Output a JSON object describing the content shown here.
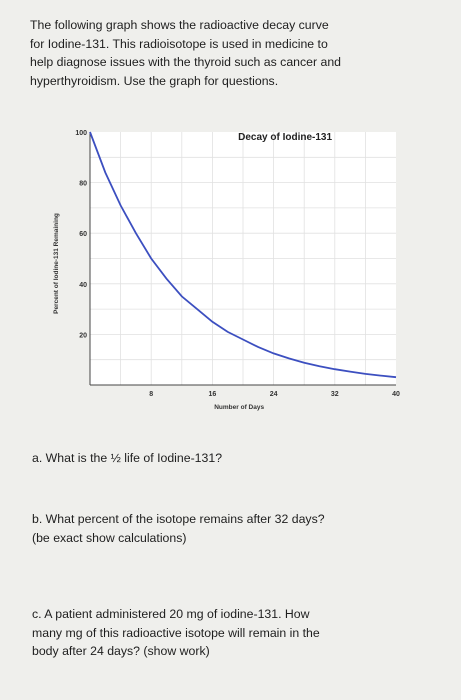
{
  "intro": {
    "lines": [
      "The following graph shows the radioactive decay curve",
      "for Iodine-131. This radioisotope is used in medicine to",
      "help diagnose issues with the thyroid such as cancer and",
      "hyperthyroidism. Use the graph for questions."
    ]
  },
  "chart_data": {
    "type": "line",
    "title": "Decay of Iodine-131",
    "xlabel": "Number of Days",
    "ylabel": "Percent of Iodine-131 Remaining",
    "xlim": [
      0,
      40
    ],
    "ylim": [
      0,
      100
    ],
    "x_ticks": [
      "8",
      "16",
      "24",
      "32",
      "40"
    ],
    "y_ticks": [
      "100",
      "80",
      "60",
      "40",
      "20"
    ],
    "grid": true,
    "series": [
      {
        "color": "#3c4fc0",
        "x": [
          0,
          2,
          4,
          6,
          8,
          10,
          12,
          14,
          16,
          18,
          20,
          22,
          24,
          26,
          28,
          30,
          32,
          34,
          36,
          38,
          40
        ],
        "y": [
          100,
          84,
          71,
          60,
          50,
          42,
          35,
          30,
          25,
          21,
          18,
          15,
          12.5,
          10.5,
          8.8,
          7.4,
          6.25,
          5.3,
          4.4,
          3.7,
          3.1
        ]
      }
    ]
  },
  "questions": {
    "a": [
      "a. What is the ½ life of Iodine-131?"
    ],
    "b": [
      "b. What percent of the isotope remains after 32 days?",
      "(be exact show calculations)"
    ],
    "c": [
      "c. A patient administered 20 mg of iodine-131. How",
      "many mg of this radioactive isotope will remain in the",
      "body after 24 days? (show work)"
    ]
  }
}
